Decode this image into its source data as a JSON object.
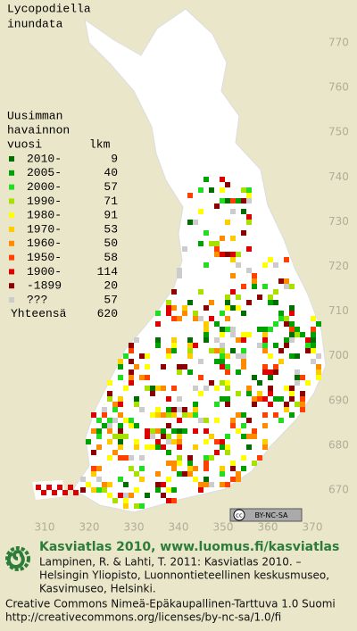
{
  "title": [
    "Lycopodiella",
    "inundata"
  ],
  "legend": {
    "heading": [
      "Uusimman",
      "havainnon",
      "vuosi"
    ],
    "count_heading": "lkm",
    "items": [
      {
        "label": "2010-",
        "count": 9,
        "color": "#006e00"
      },
      {
        "label": "2005-",
        "count": 40,
        "color": "#00a000"
      },
      {
        "label": "2000-",
        "count": 57,
        "color": "#22dd22"
      },
      {
        "label": "1990-",
        "count": 71,
        "color": "#a8e000"
      },
      {
        "label": "1980-",
        "count": 91,
        "color": "#ffff00"
      },
      {
        "label": "1970-",
        "count": 53,
        "color": "#ffcc00"
      },
      {
        "label": "1960-",
        "count": 50,
        "color": "#ff8c00"
      },
      {
        "label": "1950-",
        "count": 58,
        "color": "#ff4000"
      },
      {
        "label": "1900-",
        "count": 114,
        "color": "#dd0000"
      },
      {
        "label": "-1899",
        "count": 20,
        "color": "#8b0000"
      },
      {
        "label": "???",
        "count": 57,
        "color": "#cccccc"
      }
    ],
    "total_label": "Yhteensä",
    "total": 620
  },
  "y_grid_labels": [
    770,
    760,
    750,
    740,
    730,
    720,
    710,
    700,
    690,
    680,
    670
  ],
  "x_grid_labels": [
    310,
    320,
    330,
    340,
    350,
    360,
    370
  ],
  "license_badge": "BY-NC-SA",
  "footer": {
    "site": "Kasviatlas 2010, www.luomus.fi/kasviatlas",
    "citation": [
      "Lampinen, R. & Lahti, T. 2011: Kasviatlas 2010. –",
      "Helsingin Yliopisto, Luonnontieteellinen keskusmuseo,",
      "Kasvimuseo, Helsinki."
    ],
    "license": [
      "Creative Commons Nimeä-Epäkaupallinen-Tarttuva 1.0 Suomi",
      "http://creativecommons.org/licenses/by-nc-sa/1.0/fi"
    ]
  }
}
